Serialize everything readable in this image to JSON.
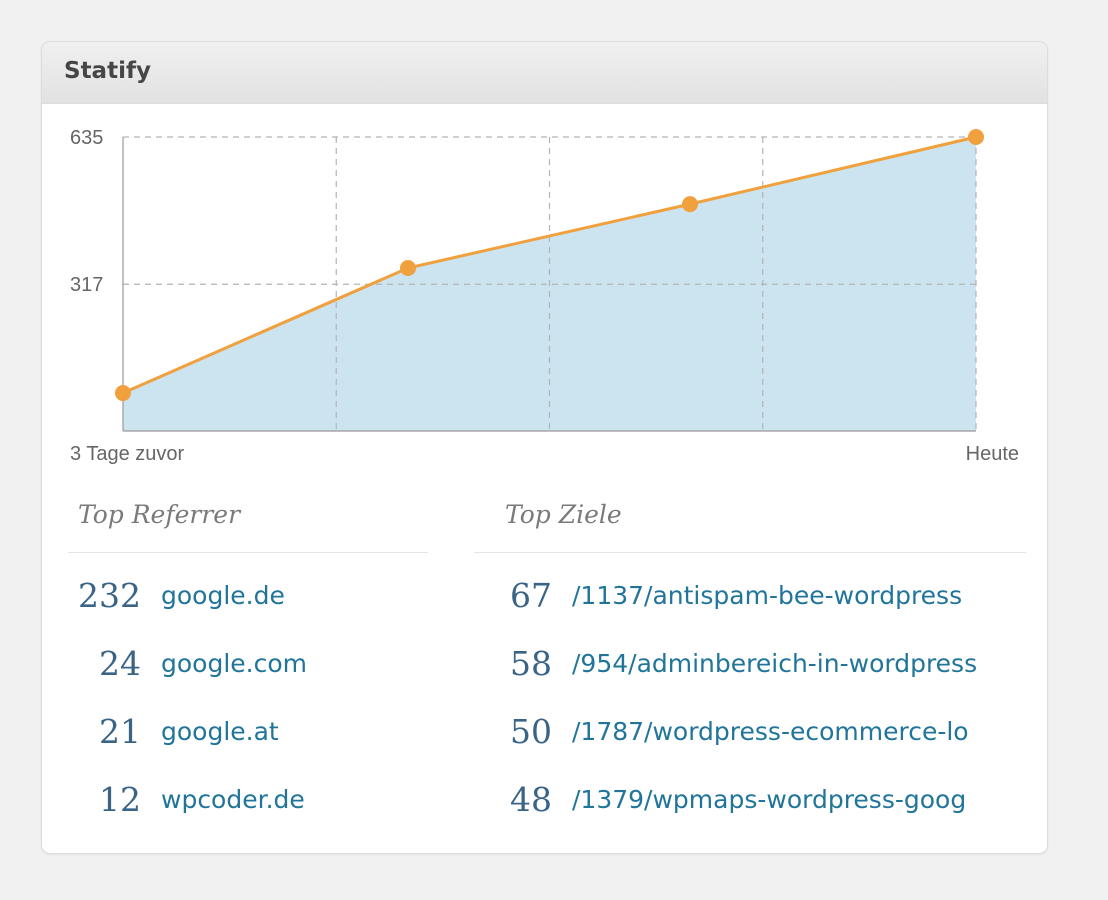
{
  "widget": {
    "title": "Statify"
  },
  "chart_data": {
    "type": "area",
    "x": [
      "3 Tage zuvor",
      "",
      "",
      "Heute"
    ],
    "values": [
      82,
      352,
      490,
      635
    ],
    "yticks": [
      317,
      635
    ],
    "ylim": [
      0,
      635
    ],
    "x_start_label": "3 Tage zuvor",
    "x_end_label": "Heute",
    "grid": true,
    "colors": {
      "line": "#f0a03c",
      "fill": "#cce3f0",
      "grid": "#b4b4b4",
      "axis": "#999999"
    }
  },
  "top_referrer": {
    "title": "Top Referrer",
    "items": [
      {
        "count": "232",
        "label": "google.de"
      },
      {
        "count": "24",
        "label": "google.com"
      },
      {
        "count": "21",
        "label": "google.at"
      },
      {
        "count": "12",
        "label": "wpcoder.de"
      }
    ]
  },
  "top_ziele": {
    "title": "Top Ziele",
    "items": [
      {
        "count": "67",
        "label": "/1137/antispam-bee-wordpress"
      },
      {
        "count": "58",
        "label": "/954/adminbereich-in-wordpress"
      },
      {
        "count": "50",
        "label": "/1787/wordpress-ecommerce-lo"
      },
      {
        "count": "48",
        "label": "/1379/wpmaps-wordpress-goog"
      }
    ]
  }
}
